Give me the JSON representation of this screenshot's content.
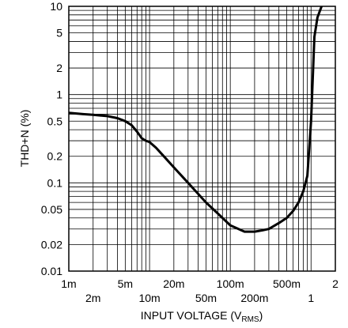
{
  "chart_data": {
    "type": "line",
    "title": "",
    "xlabel": "INPUT VOLTAGE (V",
    "xlabel_subscript": "RMS",
    "xlabel_close": ")",
    "ylabel": "THD+N (%)",
    "xscale": "log",
    "yscale": "log",
    "xlim": [
      0.001,
      2
    ],
    "ylim": [
      0.01,
      10
    ],
    "grid": true,
    "x_tick_labels_row1": [
      {
        "value": 0.001,
        "label": "1m"
      },
      {
        "value": 0.005,
        "label": "5m"
      },
      {
        "value": 0.02,
        "label": "20m"
      },
      {
        "value": 0.1,
        "label": "100m"
      },
      {
        "value": 0.5,
        "label": "500m"
      },
      {
        "value": 2,
        "label": "2"
      }
    ],
    "x_tick_labels_row2": [
      {
        "value": 0.002,
        "label": "2m"
      },
      {
        "value": 0.01,
        "label": "10m"
      },
      {
        "value": 0.05,
        "label": "50m"
      },
      {
        "value": 0.2,
        "label": "200m"
      },
      {
        "value": 1,
        "label": "1"
      }
    ],
    "y_tick_labels": [
      {
        "value": 10,
        "label": "10"
      },
      {
        "value": 5,
        "label": "5"
      },
      {
        "value": 2,
        "label": "2"
      },
      {
        "value": 1,
        "label": "1"
      },
      {
        "value": 0.5,
        "label": "0.5"
      },
      {
        "value": 0.2,
        "label": "0.2"
      },
      {
        "value": 0.1,
        "label": "0.1"
      },
      {
        "value": 0.05,
        "label": "0.05"
      },
      {
        "value": 0.02,
        "label": "0.02"
      },
      {
        "value": 0.01,
        "label": "0.01"
      }
    ],
    "series": [
      {
        "x": [
          0.001,
          0.0015,
          0.002,
          0.003,
          0.004,
          0.005,
          0.006,
          0.007,
          0.008,
          0.009,
          0.01,
          0.012,
          0.015,
          0.02,
          0.03,
          0.05,
          0.07,
          0.1,
          0.15,
          0.2,
          0.25,
          0.3,
          0.4,
          0.5,
          0.6,
          0.7,
          0.8,
          0.9,
          1.0,
          1.05,
          1.1,
          1.2,
          1.35
        ],
        "y": [
          0.62,
          0.6,
          0.59,
          0.57,
          0.54,
          0.5,
          0.45,
          0.38,
          0.32,
          0.3,
          0.29,
          0.25,
          0.2,
          0.15,
          0.1,
          0.06,
          0.045,
          0.033,
          0.028,
          0.028,
          0.029,
          0.03,
          0.035,
          0.04,
          0.048,
          0.06,
          0.08,
          0.12,
          0.5,
          1.5,
          4.5,
          7.5,
          10
        ]
      }
    ]
  }
}
